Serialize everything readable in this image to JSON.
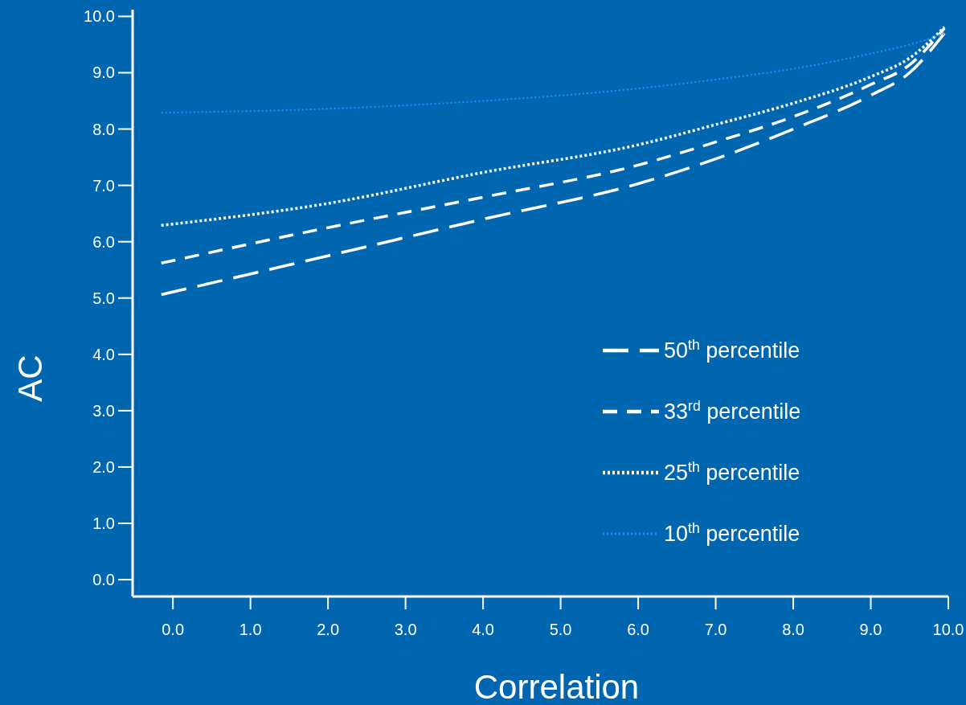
{
  "chart_data": {
    "type": "line",
    "xlabel": "Correlation",
    "ylabel": "AC",
    "x": [
      -0.15,
      2,
      4,
      6,
      7,
      8,
      9,
      9.5,
      9.95
    ],
    "series": [
      {
        "name": "50$^{th}$ percentile",
        "color": "#ffffff",
        "line_style": "dashed",
        "values": [
          5.06,
          5.75,
          6.4,
          7.03,
          7.47,
          8.0,
          8.6,
          9.0,
          9.7
        ]
      },
      {
        "name": "33$^{rd}$ percentile",
        "color": "#ffffff",
        "line_style": "dashed",
        "values": [
          5.62,
          6.25,
          6.79,
          7.36,
          7.77,
          8.22,
          8.79,
          9.14,
          9.79
        ]
      },
      {
        "name": "25$^{th}$ percentile",
        "color": "#ffffff",
        "line_style": "dotted",
        "values": [
          6.29,
          6.68,
          7.23,
          7.72,
          8.08,
          8.46,
          8.93,
          9.26,
          9.81
        ]
      },
      {
        "name": "10$^{th}$ percentile",
        "color": "#1e8fff",
        "line_style": "dotted",
        "values": [
          8.29,
          8.36,
          8.5,
          8.72,
          8.88,
          9.07,
          9.34,
          9.5,
          9.69
        ]
      }
    ],
    "xlim": [
      -0.52,
      10
    ],
    "ylim": [
      -0.27,
      10.12
    ],
    "xticks": [
      {
        "value": 0,
        "label": "0.0"
      },
      {
        "value": 1,
        "label": "1.0"
      },
      {
        "value": 2,
        "label": "2.0"
      },
      {
        "value": 3,
        "label": "3.0"
      },
      {
        "value": 4,
        "label": "4.0"
      },
      {
        "value": 5,
        "label": "5.0"
      },
      {
        "value": 6,
        "label": "6.0"
      },
      {
        "value": 7,
        "label": "7.0"
      },
      {
        "value": 8,
        "label": "8.0"
      },
      {
        "value": 9,
        "label": "9.0"
      },
      {
        "value": 10,
        "label": "10.0"
      }
    ],
    "yticks": [
      {
        "value": 0,
        "label": "0.0"
      },
      {
        "value": 1,
        "label": "1.0"
      },
      {
        "value": 2,
        "label": "2.0"
      },
      {
        "value": 3,
        "label": "3.0"
      },
      {
        "value": 4,
        "label": "4.0"
      },
      {
        "value": 5,
        "label": "5.0"
      },
      {
        "value": 6,
        "label": "6.0"
      },
      {
        "value": 7,
        "label": "7.0"
      },
      {
        "value": 8,
        "label": "8.0"
      },
      {
        "value": 9,
        "label": "9.0"
      },
      {
        "value": 10,
        "label": "10.0"
      }
    ],
    "grid": false,
    "legend": "bottom right"
  }
}
